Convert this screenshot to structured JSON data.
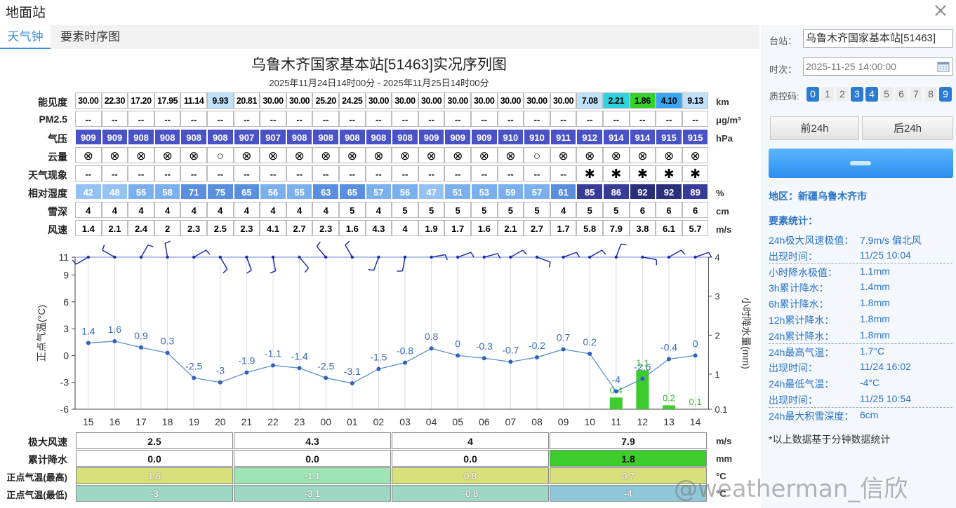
{
  "window": {
    "title": "地面站"
  },
  "tabs": [
    {
      "label": "天气钟"
    },
    {
      "label": "要素时序图"
    }
  ],
  "chart": {
    "title": "乌鲁木齐国家基本站[51463]实况序列图",
    "subtitle": "2025年11月24日14时00分 - 2025年11月25日14时00分"
  },
  "hours": [
    "15",
    "16",
    "17",
    "18",
    "19",
    "20",
    "21",
    "22",
    "23",
    "00",
    "01",
    "02",
    "03",
    "04",
    "05",
    "06",
    "07",
    "08",
    "09",
    "10",
    "11",
    "12",
    "13",
    "14"
  ],
  "rows": {
    "visibility": {
      "label": "能见度",
      "unit": "km",
      "values": [
        "30.00",
        "22.30",
        "17.20",
        "17.95",
        "11.14",
        "9.93",
        "20.81",
        "30.00",
        "30.00",
        "25.20",
        "24.25",
        "30.00",
        "30.00",
        "30.00",
        "30.00",
        "30.00",
        "30.00",
        "30.00",
        "30.00",
        "7.08",
        "2.21",
        "1.86",
        "4.10",
        "9.13"
      ]
    },
    "pm25": {
      "label": "PM2.5",
      "unit": "μg/m³",
      "values": [
        "--",
        "--",
        "--",
        "--",
        "--",
        "--",
        "--",
        "--",
        "--",
        "--",
        "--",
        "--",
        "--",
        "--",
        "--",
        "--",
        "--",
        "--",
        "--",
        "--",
        "--",
        "--",
        "--",
        "--"
      ]
    },
    "pressure": {
      "label": "气压",
      "unit": "hPa",
      "values": [
        "909",
        "909",
        "908",
        "908",
        "908",
        "908",
        "907",
        "907",
        "908",
        "908",
        "908",
        "908",
        "908",
        "909",
        "909",
        "909",
        "910",
        "910",
        "911",
        "912",
        "914",
        "914",
        "915",
        "915"
      ]
    },
    "cloud": {
      "label": "云量",
      "values": [
        "⊗",
        "⊗",
        "⊗",
        "⊗",
        "⊗",
        "○",
        "⊗",
        "⊗",
        "⊗",
        "⊗",
        "⊗",
        "⊗",
        "⊗",
        "⊗",
        "⊗",
        "⊗",
        "⊗",
        "○",
        "⊗",
        "⊗",
        "⊗",
        "⊗",
        "⊗",
        "⊗"
      ]
    },
    "weather": {
      "label": "天气现象",
      "values": [
        "--",
        "--",
        "--",
        "--",
        "--",
        "--",
        "--",
        "--",
        "--",
        "--",
        "--",
        "--",
        "--",
        "--",
        "--",
        "--",
        "--",
        "--",
        "--",
        "✱",
        "✱",
        "✱",
        "✱",
        "✱"
      ]
    },
    "humidity": {
      "label": "相对湿度",
      "unit": "%",
      "values": [
        "42",
        "48",
        "55",
        "58",
        "71",
        "75",
        "65",
        "56",
        "55",
        "63",
        "65",
        "57",
        "56",
        "47",
        "51",
        "53",
        "59",
        "57",
        "61",
        "85",
        "86",
        "92",
        "92",
        "89"
      ]
    },
    "snow": {
      "label": "雪深",
      "unit": "cm",
      "values": [
        "4",
        "4",
        "4",
        "4",
        "4",
        "4",
        "4",
        "4",
        "4",
        "4",
        "5",
        "4",
        "5",
        "5",
        "5",
        "5",
        "5",
        "5",
        "4",
        "5",
        "5",
        "6",
        "6",
        "6"
      ]
    },
    "wind": {
      "label": "风速",
      "unit": "m/s",
      "values": [
        "1.4",
        "2.1",
        "2.4",
        "2",
        "2.3",
        "2.5",
        "2.3",
        "4.1",
        "2.7",
        "2.3",
        "1.6",
        "4.3",
        "4",
        "1.9",
        "1.7",
        "1.6",
        "2.1",
        "2.7",
        "1.7",
        "5.8",
        "7.9",
        "3.8",
        "6.1",
        "5.7"
      ]
    }
  },
  "chart_data": {
    "type": "line",
    "ylabel": "正点气温(°C)",
    "y2label": "小时降水量(mm)",
    "ylim": [
      -6,
      11
    ],
    "yticks": [
      "11",
      "9",
      "6",
      "3",
      "0",
      "-3",
      "-6"
    ],
    "y2ticks": [
      "4",
      "3",
      "2",
      "1",
      "0.1"
    ],
    "x": [
      "15",
      "16",
      "17",
      "18",
      "19",
      "20",
      "21",
      "22",
      "23",
      "00",
      "01",
      "02",
      "03",
      "04",
      "05",
      "06",
      "07",
      "08",
      "09",
      "10",
      "11",
      "12",
      "13",
      "14"
    ],
    "series": [
      {
        "values": [
          1.4,
          1.6,
          0.9,
          0.3,
          -2.5,
          -3,
          -1.9,
          -1.1,
          -1.4,
          -2.5,
          -3.1,
          -1.5,
          -0.8,
          0.8,
          0,
          -0.3,
          -0.7,
          -0.2,
          0.7,
          0.2,
          -4,
          -2.6,
          -0.4,
          0
        ],
        "labels": [
          "1.4",
          "1.6",
          "0.9",
          "0.3",
          "-2.5",
          "-3",
          "-1.9",
          "-1.1",
          "-1.4",
          "-2.5",
          "-3.1",
          "-1.5",
          "-0.8",
          "0.8",
          "0",
          "-0.3",
          "-0.7",
          "-0.2",
          "0.7",
          "0.2",
          "-4",
          "-2.6",
          "-0.4",
          "0"
        ]
      },
      {
        "type": "bar",
        "values": [
          0,
          0,
          0,
          0,
          0,
          0,
          0,
          0,
          0,
          0,
          0,
          0,
          0,
          0,
          0,
          0,
          0,
          0,
          0,
          0,
          0.4,
          1.1,
          0.2,
          0.1
        ],
        "labels": [
          "",
          "",
          "",
          "",
          "",
          "",
          "",
          "",
          "",
          "",
          "",
          "",
          "",
          "",
          "",
          "",
          "",
          "",
          "",
          "",
          "0.4",
          "1.1",
          "0.2",
          "0.1"
        ]
      }
    ],
    "wind_dir_deg": [
      240,
      300,
      30,
      350,
      60,
      150,
      160,
      170,
      140,
      320,
      330,
      200,
      190,
      80,
      70,
      75,
      60,
      110,
      70,
      60,
      20,
      100,
      60,
      70
    ]
  },
  "bottom": {
    "maxwind": {
      "label": "极大风速",
      "unit": "m/s",
      "values": [
        "2.5",
        "4.3",
        "4",
        "7.9"
      ]
    },
    "precip": {
      "label": "累计降水",
      "unit": "mm",
      "values": [
        "0.0",
        "0.0",
        "0.0",
        "1.8"
      ]
    },
    "tmax": {
      "label": "正点气温(最高)",
      "unit": "°C",
      "values": [
        "1.6",
        "-1.1",
        "0.8",
        "0.7"
      ]
    },
    "tmin": {
      "label": "正点气温(最低)",
      "unit": "°C",
      "values": [
        "-3",
        "-3.1",
        "-0.8",
        "-4"
      ]
    }
  },
  "side": {
    "station_label": "台站：",
    "station_value": "乌鲁木齐国家基本站[51463]",
    "time_label": "时次：",
    "time_value": "2025-11-25 14:00:00",
    "qc_label": "质控码:",
    "qc": [
      "0",
      "1",
      "2",
      "3",
      "4",
      "5",
      "6",
      "7",
      "8",
      "9"
    ],
    "prev": "前24h",
    "next": "后24h",
    "region": "地区：新疆乌鲁木齐市",
    "stats_title": "要素统计：",
    "stats": [
      [
        "24h极大风速极值：",
        "7.9m/s 偏北风"
      ],
      [
        "出现时间：",
        "11/25 10:04"
      ],
      [
        "小时降水极值：",
        "1.1mm"
      ],
      [
        "3h累计降水：",
        "1.4mm"
      ],
      [
        "6h累计降水：",
        "1.8mm"
      ],
      [
        "12h累计降水：",
        "1.8mm"
      ],
      [
        "24h累计降水：",
        "1.8mm"
      ],
      [
        "24h最高气温：",
        "1.7°C"
      ],
      [
        "出现时间：",
        "11/24 16:02"
      ],
      [
        "24h最低气温：",
        "-4°C"
      ],
      [
        "出现时间：",
        "11/25 10:54"
      ],
      [
        "24h最大积雪深度：",
        "6cm"
      ]
    ],
    "note": "*以上数据基于分钟数据统计"
  },
  "watermark": "@weatherman_信欣",
  "colors": {
    "accent": "#3a8fd9",
    "pressure": "#4a52c8",
    "rain": "#3ccc2c",
    "grid": "#dddddd",
    "line": "#5a8fd0"
  }
}
